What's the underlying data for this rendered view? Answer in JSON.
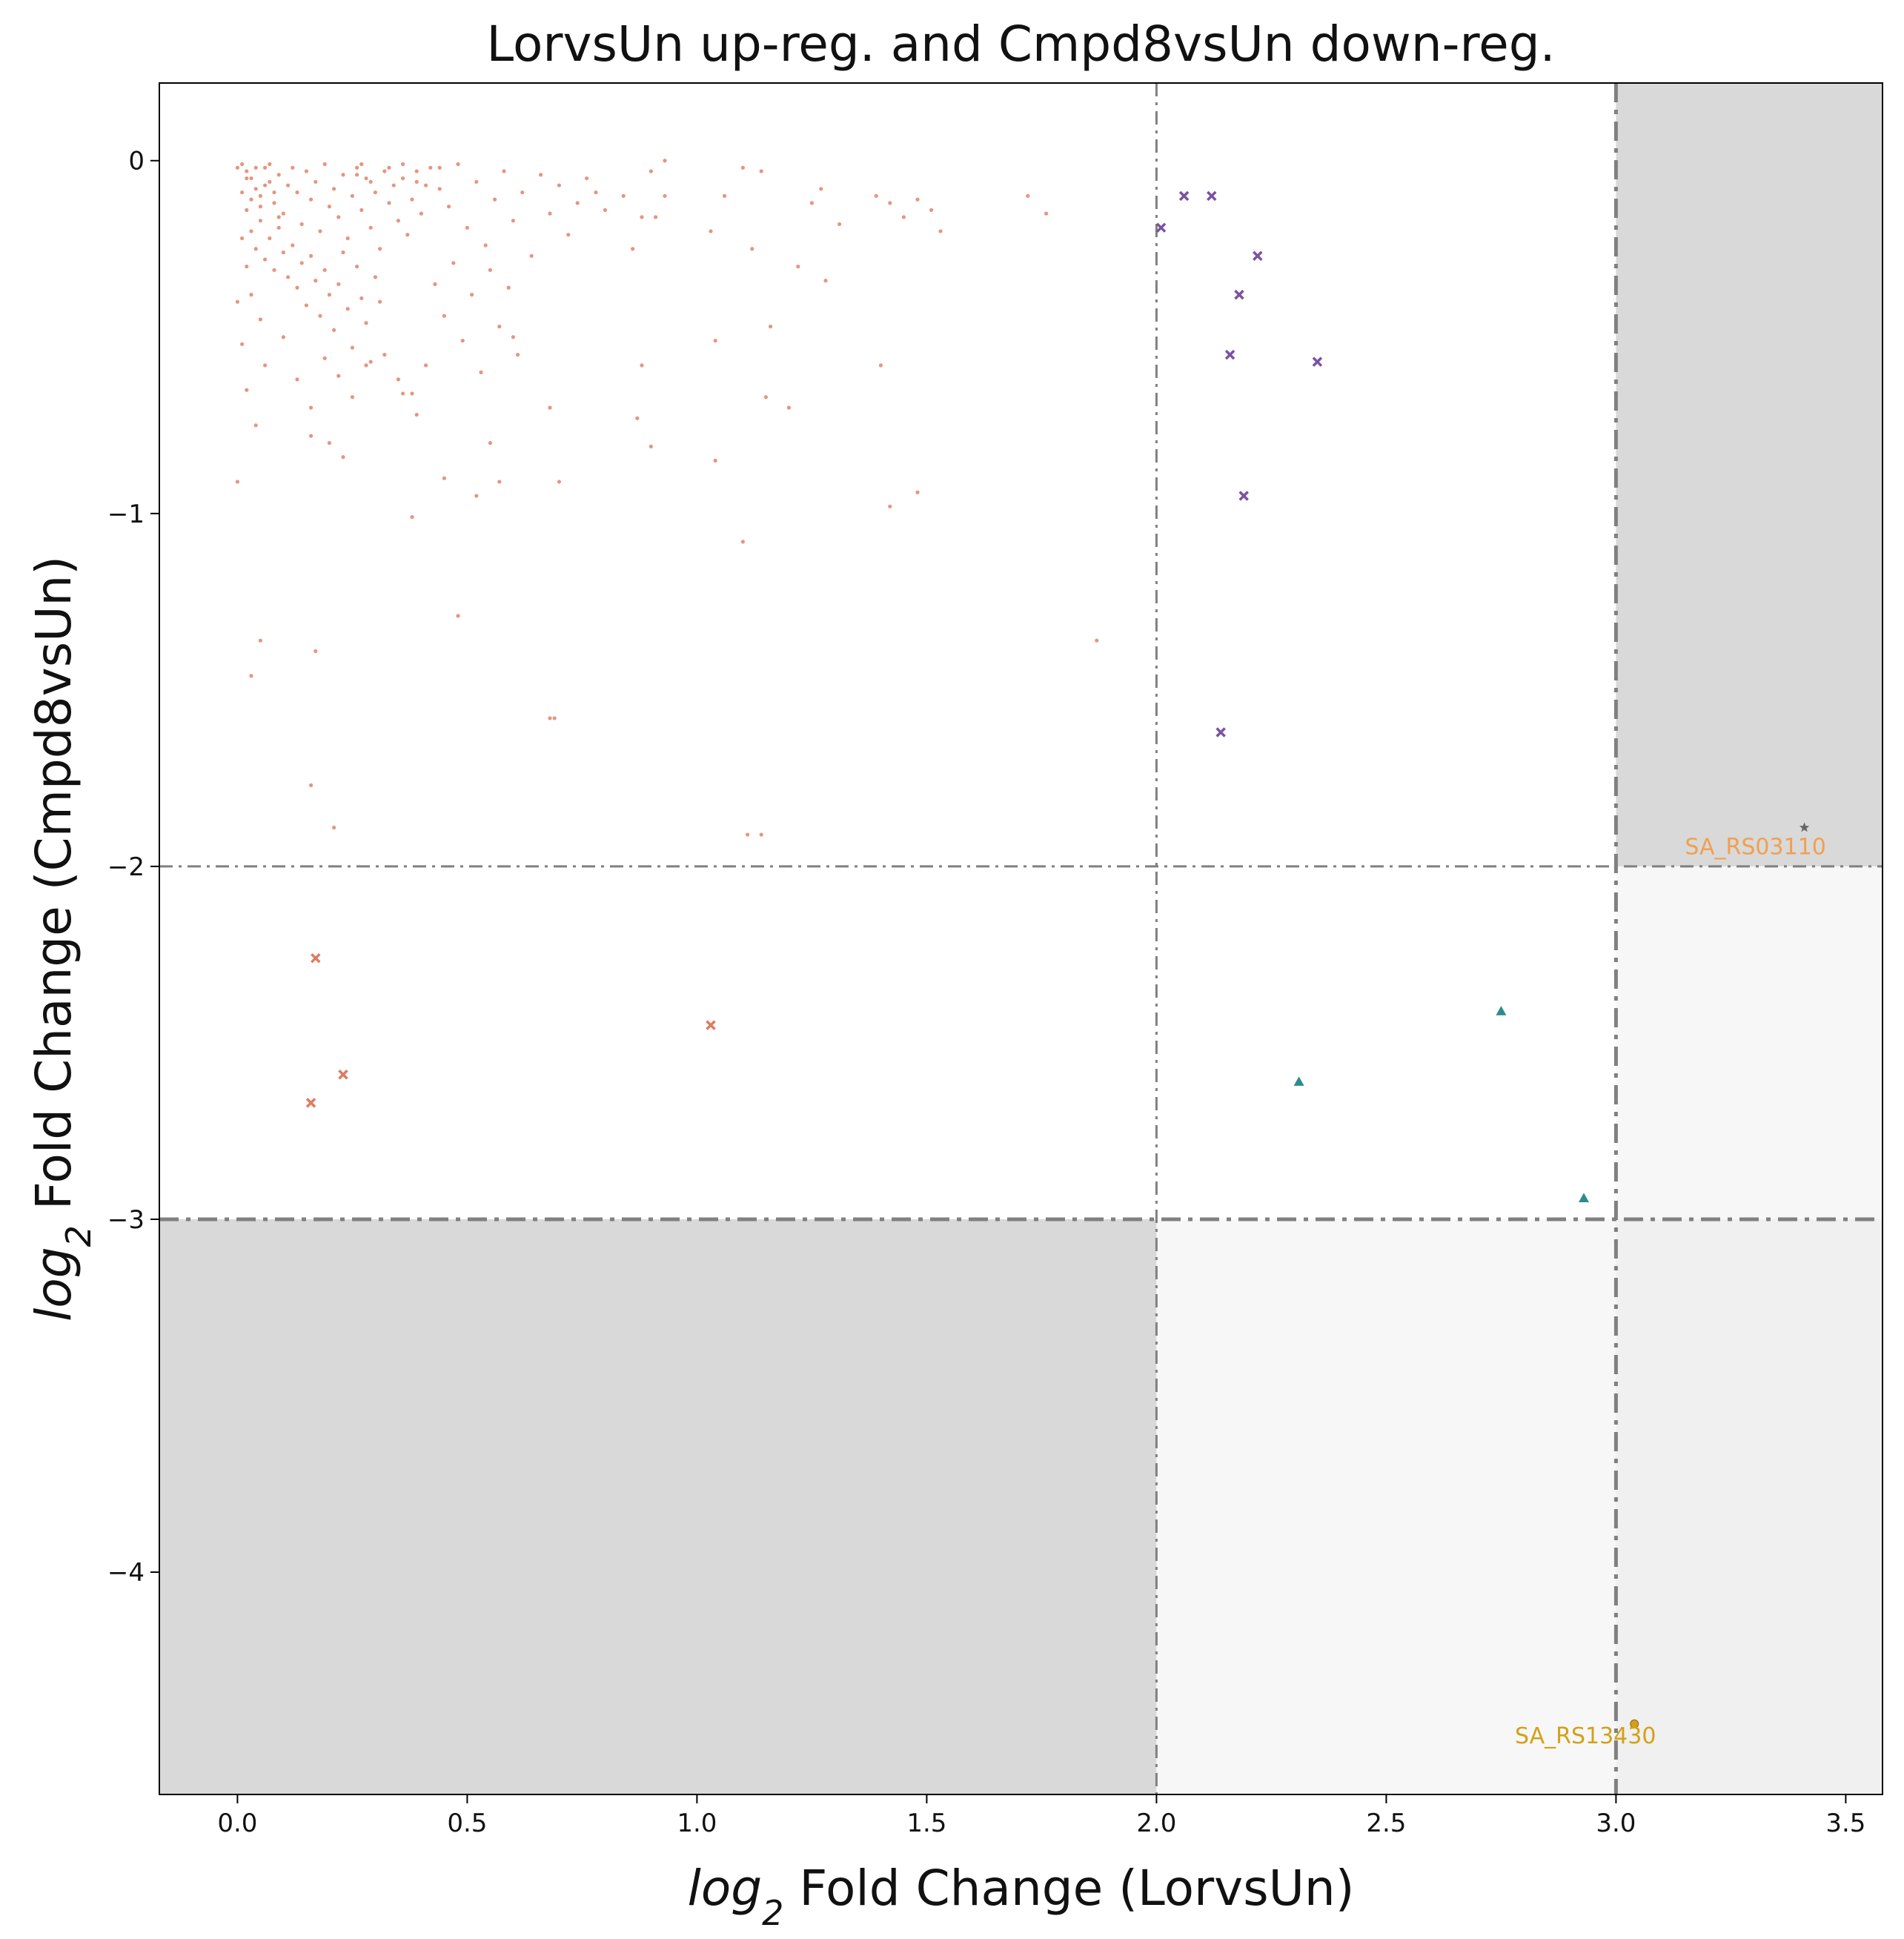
{
  "chart_data": {
    "type": "scatter",
    "title": "LorvsUn up-reg. and Cmpd8vsUn down-reg.",
    "xlabel": {
      "italic": "log",
      "sub": "2",
      "rest": " Fold Change (LorvsUn)"
    },
    "ylabel": {
      "italic": "log",
      "sub": "2",
      "rest": " Fold Change (Cmpd8vsUn)"
    },
    "xlim": [
      -0.17,
      3.58
    ],
    "ylim": [
      -4.63,
      0.22
    ],
    "xticks": [
      0.0,
      0.5,
      1.0,
      1.5,
      2.0,
      2.5,
      3.0,
      3.5
    ],
    "xtick_labels": [
      "0.0",
      "0.5",
      "1.0",
      "1.5",
      "2.0",
      "2.5",
      "3.0",
      "3.5"
    ],
    "yticks": [
      0,
      -1,
      -2,
      -3,
      -4
    ],
    "ytick_labels": [
      "0",
      "−1",
      "−2",
      "−3",
      "−4"
    ],
    "grid": false,
    "threshold_lines": {
      "vertical": [
        2.0,
        3.0
      ],
      "horizontal": [
        -2.0,
        -3.0
      ],
      "color": "#808080"
    },
    "shaded_regions": [
      {
        "x": [
          3.0,
          3.58
        ],
        "y": [
          -2.0,
          0.22
        ],
        "color": "#d9d9d9"
      },
      {
        "x": [
          -0.17,
          2.0
        ],
        "y": [
          -4.63,
          -3.0
        ],
        "color": "#d9d9d9"
      },
      {
        "x": [
          3.0,
          3.58
        ],
        "y": [
          -3.0,
          -2.0
        ],
        "color": "#f7f7f7"
      },
      {
        "x": [
          2.0,
          3.0
        ],
        "y": [
          -4.63,
          -3.0
        ],
        "color": "#f7f7f7"
      },
      {
        "x": [
          3.0,
          3.58
        ],
        "y": [
          -4.63,
          -3.0
        ],
        "color": "#f0f0f0"
      }
    ],
    "series": [
      {
        "marker": "dot",
        "color": "#e07a5f",
        "points": [
          [
            0.01,
            -0.01
          ],
          [
            0.02,
            -0.03
          ],
          [
            0.03,
            -0.05
          ],
          [
            0.04,
            -0.08
          ],
          [
            0.05,
            -0.1
          ],
          [
            0.06,
            -0.02
          ],
          [
            0.07,
            -0.06
          ],
          [
            0.08,
            -0.12
          ],
          [
            0.09,
            -0.04
          ],
          [
            0.1,
            -0.15
          ],
          [
            0.11,
            -0.07
          ],
          [
            0.12,
            -0.02
          ],
          [
            0.13,
            -0.09
          ],
          [
            0.14,
            -0.18
          ],
          [
            0.15,
            -0.03
          ],
          [
            0.16,
            -0.11
          ],
          [
            0.17,
            -0.06
          ],
          [
            0.18,
            -0.2
          ],
          [
            0.19,
            -0.01
          ],
          [
            0.2,
            -0.13
          ],
          [
            0.21,
            -0.08
          ],
          [
            0.22,
            -0.16
          ],
          [
            0.23,
            -0.04
          ],
          [
            0.24,
            -0.22
          ],
          [
            0.25,
            -0.1
          ],
          [
            0.26,
            -0.02
          ],
          [
            0.27,
            -0.14
          ],
          [
            0.28,
            -0.05
          ],
          [
            0.29,
            -0.19
          ],
          [
            0.3,
            -0.09
          ],
          [
            0.31,
            -0.25
          ],
          [
            0.32,
            -0.03
          ],
          [
            0.33,
            -0.12
          ],
          [
            0.34,
            -0.07
          ],
          [
            0.35,
            -0.17
          ],
          [
            0.36,
            -0.01
          ],
          [
            0.37,
            -0.21
          ],
          [
            0.38,
            -0.11
          ],
          [
            0.39,
            -0.06
          ],
          [
            0.4,
            -0.15
          ],
          [
            0.02,
            -0.14
          ],
          [
            0.03,
            -0.2
          ],
          [
            0.04,
            -0.25
          ],
          [
            0.05,
            -0.17
          ],
          [
            0.06,
            -0.28
          ],
          [
            0.07,
            -0.22
          ],
          [
            0.08,
            -0.31
          ],
          [
            0.09,
            -0.19
          ],
          [
            0.1,
            -0.26
          ],
          [
            0.11,
            -0.33
          ],
          [
            0.12,
            -0.24
          ],
          [
            0.13,
            -0.36
          ],
          [
            0.14,
            -0.29
          ],
          [
            0.15,
            -0.41
          ],
          [
            0.16,
            -0.27
          ],
          [
            0.17,
            -0.34
          ],
          [
            0.18,
            -0.44
          ],
          [
            0.19,
            -0.31
          ],
          [
            0.2,
            -0.38
          ],
          [
            0.21,
            -0.48
          ],
          [
            0.22,
            -0.35
          ],
          [
            0.23,
            -0.26
          ],
          [
            0.24,
            -0.42
          ],
          [
            0.25,
            -0.53
          ],
          [
            0.26,
            -0.3
          ],
          [
            0.27,
            -0.39
          ],
          [
            0.28,
            -0.46
          ],
          [
            0.29,
            -0.57
          ],
          [
            0.3,
            -0.33
          ],
          [
            0.31,
            -0.4
          ],
          [
            0.02,
            -0.05
          ],
          [
            0.03,
            -0.11
          ],
          [
            0.04,
            -0.02
          ],
          [
            0.05,
            -0.13
          ],
          [
            0.06,
            -0.07
          ],
          [
            0.07,
            -0.01
          ],
          [
            0.08,
            -0.09
          ],
          [
            0.09,
            -0.16
          ],
          [
            0.0,
            -0.02
          ],
          [
            0.01,
            -0.09
          ],
          [
            0.42,
            -0.02
          ],
          [
            0.44,
            -0.08
          ],
          [
            0.46,
            -0.13
          ],
          [
            0.48,
            -0.01
          ],
          [
            0.5,
            -0.19
          ],
          [
            0.52,
            -0.06
          ],
          [
            0.54,
            -0.24
          ],
          [
            0.56,
            -0.11
          ],
          [
            0.58,
            -0.03
          ],
          [
            0.6,
            -0.17
          ],
          [
            0.62,
            -0.09
          ],
          [
            0.64,
            -0.27
          ],
          [
            0.66,
            -0.04
          ],
          [
            0.68,
            -0.15
          ],
          [
            0.7,
            -0.07
          ],
          [
            0.72,
            -0.21
          ],
          [
            0.74,
            -0.12
          ],
          [
            0.76,
            -0.05
          ],
          [
            0.78,
            -0.09
          ],
          [
            0.8,
            -0.14
          ],
          [
            0.43,
            -0.35
          ],
          [
            0.45,
            -0.44
          ],
          [
            0.47,
            -0.29
          ],
          [
            0.49,
            -0.51
          ],
          [
            0.51,
            -0.38
          ],
          [
            0.53,
            -0.6
          ],
          [
            0.55,
            -0.31
          ],
          [
            0.57,
            -0.47
          ],
          [
            0.59,
            -0.36
          ],
          [
            0.61,
            -0.55
          ],
          [
            0.01,
            -0.22
          ],
          [
            0.02,
            -0.3
          ],
          [
            0.03,
            -0.38
          ],
          [
            0.0,
            -0.4
          ],
          [
            0.01,
            -0.52
          ],
          [
            0.02,
            -0.65
          ],
          [
            0.04,
            -0.75
          ],
          [
            0.05,
            -0.45
          ],
          [
            0.06,
            -0.58
          ],
          [
            0.1,
            -0.5
          ],
          [
            0.13,
            -0.62
          ],
          [
            0.16,
            -0.7
          ],
          [
            0.19,
            -0.56
          ],
          [
            0.22,
            -0.61
          ],
          [
            0.25,
            -0.67
          ],
          [
            0.28,
            -0.58
          ],
          [
            0.32,
            -0.55
          ],
          [
            0.35,
            -0.62
          ],
          [
            0.38,
            -0.66
          ],
          [
            0.41,
            -0.58
          ],
          [
            0.16,
            -0.78
          ],
          [
            0.2,
            -0.8
          ],
          [
            0.23,
            -0.84
          ],
          [
            0.36,
            -0.66
          ],
          [
            0.39,
            -0.72
          ],
          [
            0.45,
            -0.9
          ],
          [
            0.52,
            -0.95
          ],
          [
            0.55,
            -0.8
          ],
          [
            0.57,
            -0.91
          ],
          [
            0.6,
            -0.5
          ],
          [
            0.0,
            -0.91
          ],
          [
            0.38,
            -1.01
          ],
          [
            0.68,
            -0.7
          ],
          [
            0.7,
            -0.91
          ],
          [
            0.88,
            -0.58
          ],
          [
            0.87,
            -0.73
          ],
          [
            0.9,
            -0.81
          ],
          [
            1.04,
            -0.51
          ],
          [
            1.04,
            -0.85
          ],
          [
            1.15,
            -0.67
          ],
          [
            0.84,
            -0.1
          ],
          [
            0.86,
            -0.25
          ],
          [
            0.88,
            -0.16
          ],
          [
            0.9,
            -0.03
          ],
          [
            0.91,
            -0.16
          ],
          [
            0.93,
            -0.0
          ],
          [
            0.93,
            -0.1
          ],
          [
            1.03,
            -0.2
          ],
          [
            1.06,
            -0.1
          ],
          [
            1.1,
            -0.02
          ],
          [
            1.12,
            -0.25
          ],
          [
            1.14,
            -0.03
          ],
          [
            1.16,
            -0.47
          ],
          [
            1.2,
            -0.7
          ],
          [
            1.22,
            -0.3
          ],
          [
            1.25,
            -0.12
          ],
          [
            1.27,
            -0.08
          ],
          [
            1.28,
            -0.34
          ],
          [
            1.31,
            -0.18
          ],
          [
            1.39,
            -0.1
          ],
          [
            1.42,
            -0.12
          ],
          [
            1.45,
            -0.16
          ],
          [
            1.48,
            -0.11
          ],
          [
            1.51,
            -0.14
          ],
          [
            1.53,
            -0.2
          ],
          [
            1.4,
            -0.58
          ],
          [
            1.42,
            -0.98
          ],
          [
            1.48,
            -0.94
          ],
          [
            1.72,
            -0.1
          ],
          [
            1.76,
            -0.15
          ],
          [
            0.05,
            -1.36
          ],
          [
            0.17,
            -1.39
          ],
          [
            0.03,
            -1.46
          ],
          [
            0.48,
            -1.29
          ],
          [
            0.69,
            -1.58
          ],
          [
            0.68,
            -1.58
          ],
          [
            1.1,
            -1.08
          ],
          [
            1.87,
            -1.36
          ],
          [
            0.16,
            -1.77
          ],
          [
            0.21,
            -1.89
          ],
          [
            1.11,
            -1.91
          ],
          [
            1.14,
            -1.91
          ],
          [
            0.26,
            -0.04
          ],
          [
            0.27,
            -0.01
          ],
          [
            0.29,
            -0.06
          ],
          [
            0.33,
            -0.02
          ],
          [
            0.36,
            -0.05
          ],
          [
            0.39,
            -0.03
          ],
          [
            0.41,
            -0.07
          ],
          [
            0.44,
            -0.02
          ]
        ]
      },
      {
        "marker": "x",
        "color": "#e07a5f",
        "points": [
          [
            0.17,
            -2.26
          ],
          [
            0.23,
            -2.59
          ],
          [
            0.16,
            -2.67
          ],
          [
            1.03,
            -2.45
          ]
        ]
      },
      {
        "marker": "x",
        "color": "#7b52a0",
        "points": [
          [
            2.01,
            -0.19
          ],
          [
            2.06,
            -0.1
          ],
          [
            2.12,
            -0.1
          ],
          [
            2.22,
            -0.27
          ],
          [
            2.18,
            -0.38
          ],
          [
            2.16,
            -0.55
          ],
          [
            2.35,
            -0.57
          ],
          [
            2.19,
            -0.95
          ],
          [
            2.14,
            -1.62
          ]
        ]
      },
      {
        "marker": "triangle",
        "color": "#2e8b8b",
        "points": [
          [
            2.31,
            -2.61
          ],
          [
            2.75,
            -2.41
          ],
          [
            2.93,
            -2.94
          ]
        ]
      },
      {
        "marker": "star",
        "color": "#666666",
        "points": [
          [
            3.41,
            -1.89
          ]
        ]
      },
      {
        "marker": "circle",
        "color": "#d4a017",
        "points": [
          [
            3.04,
            -4.43
          ]
        ]
      }
    ],
    "annotations": [
      {
        "text": "SA_RS03110",
        "x": 3.15,
        "y": -1.94,
        "color": "#f0a050"
      },
      {
        "text": "SA_RS13430",
        "x": 2.78,
        "y": -4.46,
        "color": "#d4a017"
      }
    ]
  }
}
